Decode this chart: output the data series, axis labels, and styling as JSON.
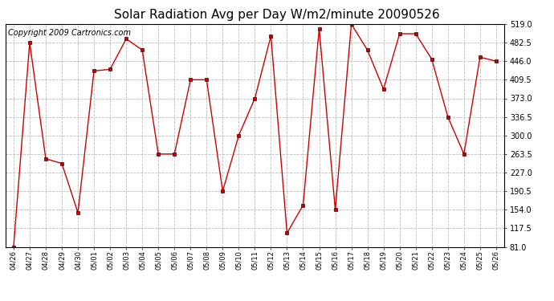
{
  "title": "Solar Radiation Avg per Day W/m2/minute 20090526",
  "copyright": "Copyright 2009 Cartronics.com",
  "labels": [
    "04/26",
    "04/27",
    "04/28",
    "04/29",
    "04/30",
    "05/01",
    "05/02",
    "05/03",
    "05/04",
    "05/05",
    "05/06",
    "05/07",
    "05/08",
    "05/09",
    "05/10",
    "05/11",
    "05/12",
    "05/13",
    "05/14",
    "05/15",
    "05/16",
    "05/17",
    "05/18",
    "05/19",
    "05/20",
    "05/21",
    "05/22",
    "05/23",
    "05/24",
    "05/25",
    "05/26"
  ],
  "values": [
    81.0,
    482.5,
    254.0,
    245.0,
    148.0,
    427.0,
    430.0,
    490.0,
    468.0,
    263.5,
    263.5,
    409.5,
    409.5,
    190.5,
    300.0,
    373.0,
    496.0,
    108.0,
    163.0,
    510.0,
    154.0,
    519.0,
    468.0,
    391.0,
    500.0,
    500.0,
    450.0,
    336.5,
    263.5,
    454.0,
    446.0
  ],
  "ylim_min": 81.0,
  "ylim_max": 519.0,
  "yticks": [
    81.0,
    117.5,
    154.0,
    190.5,
    227.0,
    263.5,
    300.0,
    336.5,
    373.0,
    409.5,
    446.0,
    482.5,
    519.0
  ],
  "line_color": "#cc0000",
  "marker_color": "#cc0000",
  "bg_color": "#ffffff",
  "grid_color": "#bbbbbb",
  "title_fontsize": 11,
  "copyright_fontsize": 7,
  "tick_fontsize": 7,
  "xtick_fontsize": 6
}
